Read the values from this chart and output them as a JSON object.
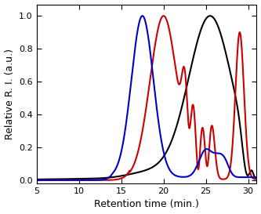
{
  "xlim": [
    5,
    31
  ],
  "ylim": [
    -0.02,
    1.07
  ],
  "xlabel": "Retention time (min.)",
  "ylabel": "Relative R. I. (a.u.)",
  "xticks": [
    5,
    10,
    15,
    20,
    25,
    30
  ],
  "yticks": [
    0.0,
    0.2,
    0.4,
    0.6,
    0.8,
    1.0
  ],
  "linewidth": 1.5,
  "figsize": [
    3.33,
    2.73
  ],
  "dpi": 100,
  "colors": {
    "black": "#000000",
    "red": "#cc0000",
    "blue": "#0000cc"
  }
}
